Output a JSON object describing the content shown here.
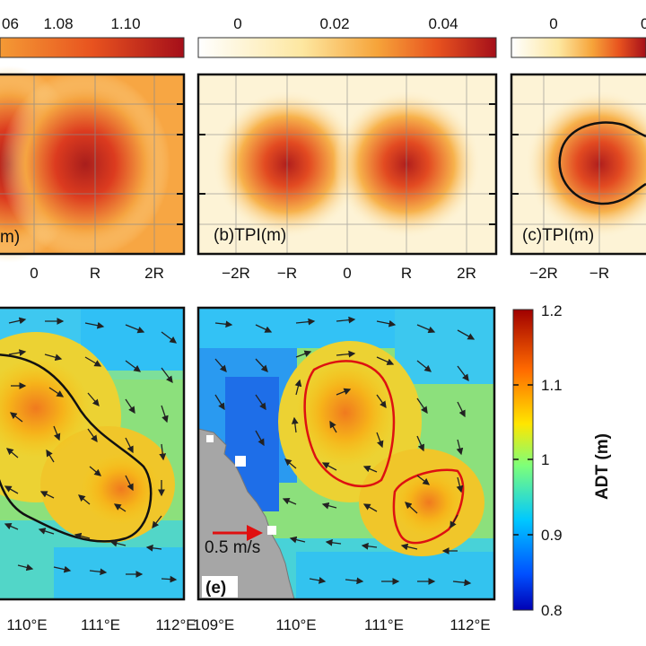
{
  "chart_data": [
    {
      "panel": "a",
      "type": "heatmap",
      "label": "m)",
      "colorbar_ticks": [
        "06",
        "1.08",
        "1.10"
      ],
      "x_ticks": [
        "0",
        "R",
        "2R"
      ],
      "centers": [
        0.0,
        0.65
      ],
      "color_range": [
        1.06,
        1.1
      ]
    },
    {
      "panel": "b",
      "type": "heatmap",
      "label": "(b)TPI(m)",
      "colorbar_ticks": [
        "0",
        "0.02",
        "0.04"
      ],
      "x_ticks": [
        "−2R",
        "−R",
        "0",
        "R",
        "2R"
      ],
      "centers": [
        -1.0,
        1.0
      ],
      "color_range": [
        0,
        0.05
      ]
    },
    {
      "panel": "c",
      "type": "heatmap",
      "label": "(c)TPI(m)",
      "colorbar_ticks": [
        "0",
        "0"
      ],
      "x_ticks": [
        "−2R",
        "−R"
      ],
      "centers": [
        -1.0
      ],
      "color_range": [
        0,
        0.05
      ]
    },
    {
      "panel": "d",
      "type": "heatmap",
      "x_ticks": [
        "110°E",
        "111°E",
        "112°E"
      ],
      "quantity": "ADT",
      "contour_color": "#111111"
    },
    {
      "panel": "e",
      "type": "heatmap",
      "label": "(e)",
      "x_ticks": [
        "109°E",
        "110°E",
        "111°E",
        "112°E"
      ],
      "quantity": "ADT",
      "contour_color": "#dd1111",
      "reference_vector": "0.5 m/s"
    }
  ],
  "colorbar": {
    "title": "ADT (m)",
    "ticks": [
      "1.2",
      "1.1",
      "1",
      "0.9",
      "0.8"
    ],
    "range": [
      0.8,
      1.2
    ]
  }
}
